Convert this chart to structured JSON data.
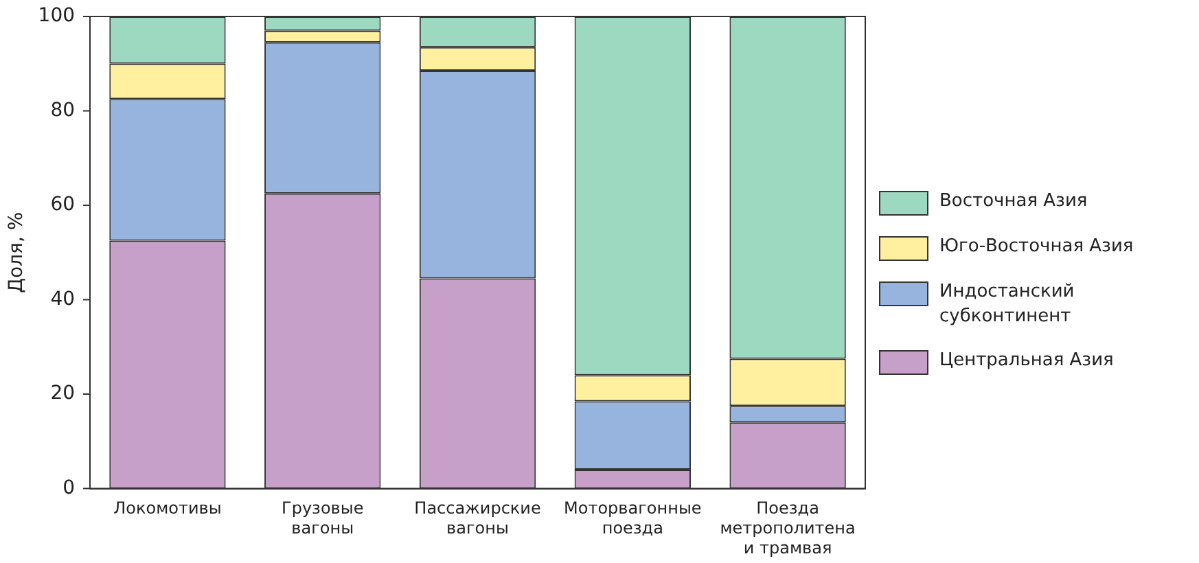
{
  "chart_data": {
    "type": "bar",
    "stacked": true,
    "ylabel": "Доля, %",
    "categories": [
      "Локомотивы",
      "Грузовые вагоны",
      "Пассажирские вагоны",
      "Моторвагонные поезда",
      "Поезда метрополитена и трамвая"
    ],
    "series": [
      {
        "name": "Центральная Азия",
        "color": "#c6a0c9",
        "values": [
          52.5,
          62.5,
          44.5,
          4,
          14
        ]
      },
      {
        "name": "Индостанский субконтинент",
        "color": "#97b4de",
        "values": [
          30,
          32,
          44,
          14.5,
          3.5
        ]
      },
      {
        "name": "Юго-Восточная Азия",
        "color": "#fff0a0",
        "values": [
          7.5,
          2.5,
          5,
          5.5,
          10
        ]
      },
      {
        "name": "Восточная Азия",
        "color": "#9dd9c0",
        "values": [
          10,
          3,
          6.5,
          76,
          72.5
        ]
      }
    ],
    "ylim": [
      0,
      100
    ],
    "yticks": [
      0,
      20,
      40,
      60,
      80,
      100
    ],
    "grid": false,
    "legend": "right"
  }
}
